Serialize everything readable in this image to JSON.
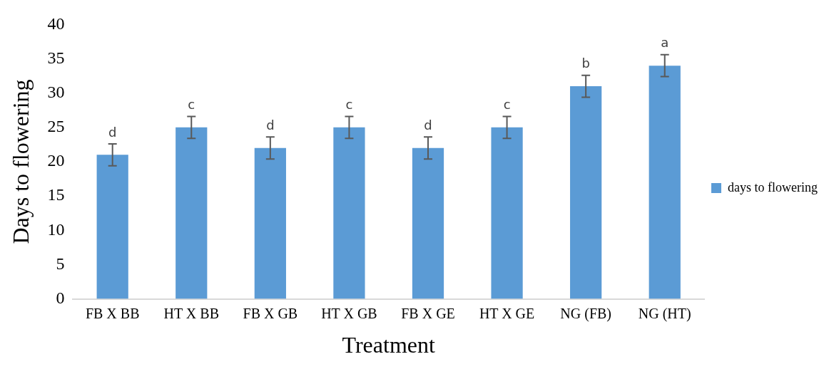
{
  "chart_data": {
    "type": "bar",
    "xlabel": "Treatment",
    "ylabel": "Days to flowering",
    "categories": [
      "FB X BB",
      "HT X BB",
      "FB X GB",
      "HT X GB",
      "FB X GE",
      "HT X GE",
      "NG (FB)",
      "NG (HT)"
    ],
    "series": [
      {
        "name": "days to flowering",
        "color": "#5b9bd5",
        "values": [
          21,
          25,
          22,
          25,
          22,
          25,
          31,
          34
        ],
        "errors": [
          1.6,
          1.6,
          1.6,
          1.6,
          1.6,
          1.6,
          1.6,
          1.6
        ],
        "value_labels": [
          "d",
          "c",
          "d",
          "c",
          "d",
          "c",
          "b",
          "a"
        ]
      }
    ],
    "ylim": [
      0,
      40
    ],
    "yticks": [
      0,
      5,
      10,
      15,
      20,
      25,
      30,
      35,
      40
    ],
    "grid": false,
    "legend": "right"
  }
}
